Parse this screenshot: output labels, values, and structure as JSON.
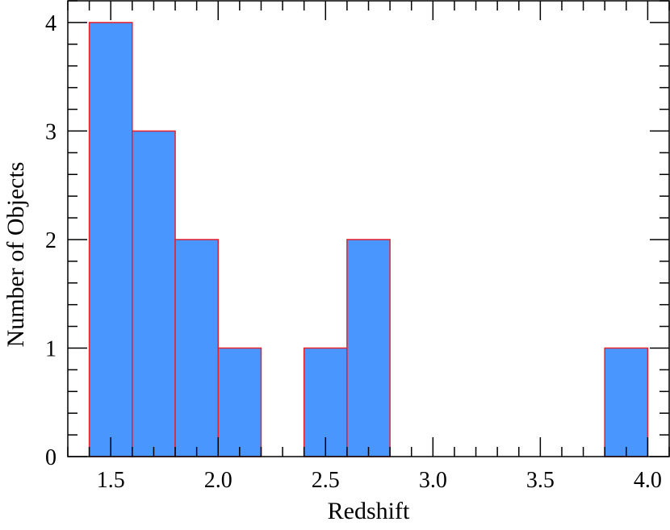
{
  "chart_data": {
    "type": "bar",
    "xlabel": "Redshift",
    "ylabel": "Number of Objects",
    "xlim": [
      1.3,
      4.1
    ],
    "ylim": [
      0,
      4.2
    ],
    "bin_width": 0.2,
    "bins": [
      {
        "start": 1.4,
        "end": 1.6,
        "count": 4
      },
      {
        "start": 1.6,
        "end": 1.8,
        "count": 3
      },
      {
        "start": 1.8,
        "end": 2.0,
        "count": 2
      },
      {
        "start": 2.0,
        "end": 2.2,
        "count": 1
      },
      {
        "start": 2.2,
        "end": 2.4,
        "count": 0
      },
      {
        "start": 2.4,
        "end": 2.6,
        "count": 1
      },
      {
        "start": 2.6,
        "end": 2.8,
        "count": 2
      },
      {
        "start": 2.8,
        "end": 3.0,
        "count": 0
      },
      {
        "start": 3.0,
        "end": 3.2,
        "count": 0
      },
      {
        "start": 3.2,
        "end": 3.4,
        "count": 0
      },
      {
        "start": 3.4,
        "end": 3.6,
        "count": 0
      },
      {
        "start": 3.6,
        "end": 3.8,
        "count": 0
      },
      {
        "start": 3.8,
        "end": 4.0,
        "count": 1
      }
    ],
    "x_ticks": [
      "1.5",
      "2.0",
      "2.5",
      "3.0",
      "3.5",
      "4.0"
    ],
    "y_ticks": [
      "0",
      "1",
      "2",
      "3",
      "4"
    ],
    "x_minor_step": 0.1,
    "y_minor_step": 0.2,
    "grid": false,
    "bar_fill": "#4a96ff",
    "bar_edge": "#e8202a"
  }
}
